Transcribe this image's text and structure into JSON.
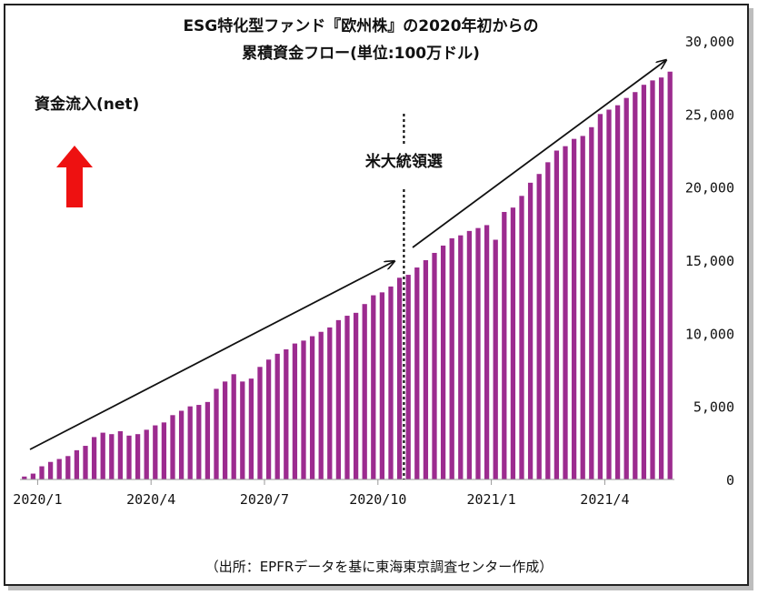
{
  "chart_data": {
    "type": "bar",
    "title_line1": "ESG特化型ファンド『欧州株』の2020年初からの",
    "title_line2": "累積資金フロー(単位:100万ドル)",
    "inflow_label": "資金流入(net)",
    "event_label": "米大統領選",
    "source": "（出所：EPFRデータを基に東海東京調査センター作成）",
    "bar_color": "#9c2b8f",
    "up_arrow_color": "#ee1111",
    "y_ticks": [
      "0",
      "5,000",
      "10,000",
      "15,000",
      "20,000",
      "25,000",
      "30,000"
    ],
    "ylim": [
      0,
      30000
    ],
    "x_tick_labels": [
      {
        "label": "2020/1",
        "index": 1
      },
      {
        "label": "2020/4",
        "index": 14
      },
      {
        "label": "2020/7",
        "index": 27
      },
      {
        "label": "2020/10",
        "index": 40
      },
      {
        "label": "2021/1",
        "index": 53
      },
      {
        "label": "2021/4",
        "index": 66
      }
    ],
    "event_index": 44,
    "values": [
      200,
      400,
      900,
      1200,
      1400,
      1600,
      2000,
      2300,
      2900,
      3200,
      3100,
      3300,
      3000,
      3100,
      3400,
      3700,
      3900,
      4400,
      4700,
      5000,
      5100,
      5300,
      6200,
      6700,
      7200,
      6700,
      6900,
      7700,
      8200,
      8600,
      8900,
      9300,
      9500,
      9800,
      10100,
      10400,
      10900,
      11200,
      11400,
      12000,
      12600,
      12800,
      13200,
      13800,
      14000,
      14500,
      15000,
      15500,
      16000,
      16500,
      16700,
      17000,
      17200,
      17400,
      16400,
      18300,
      18600,
      19400,
      20300,
      20900,
      21700,
      22500,
      22800,
      23300,
      23500,
      24100,
      25000,
      25300,
      25600,
      26100,
      26500,
      27000,
      27300,
      27500,
      27900
    ]
  }
}
